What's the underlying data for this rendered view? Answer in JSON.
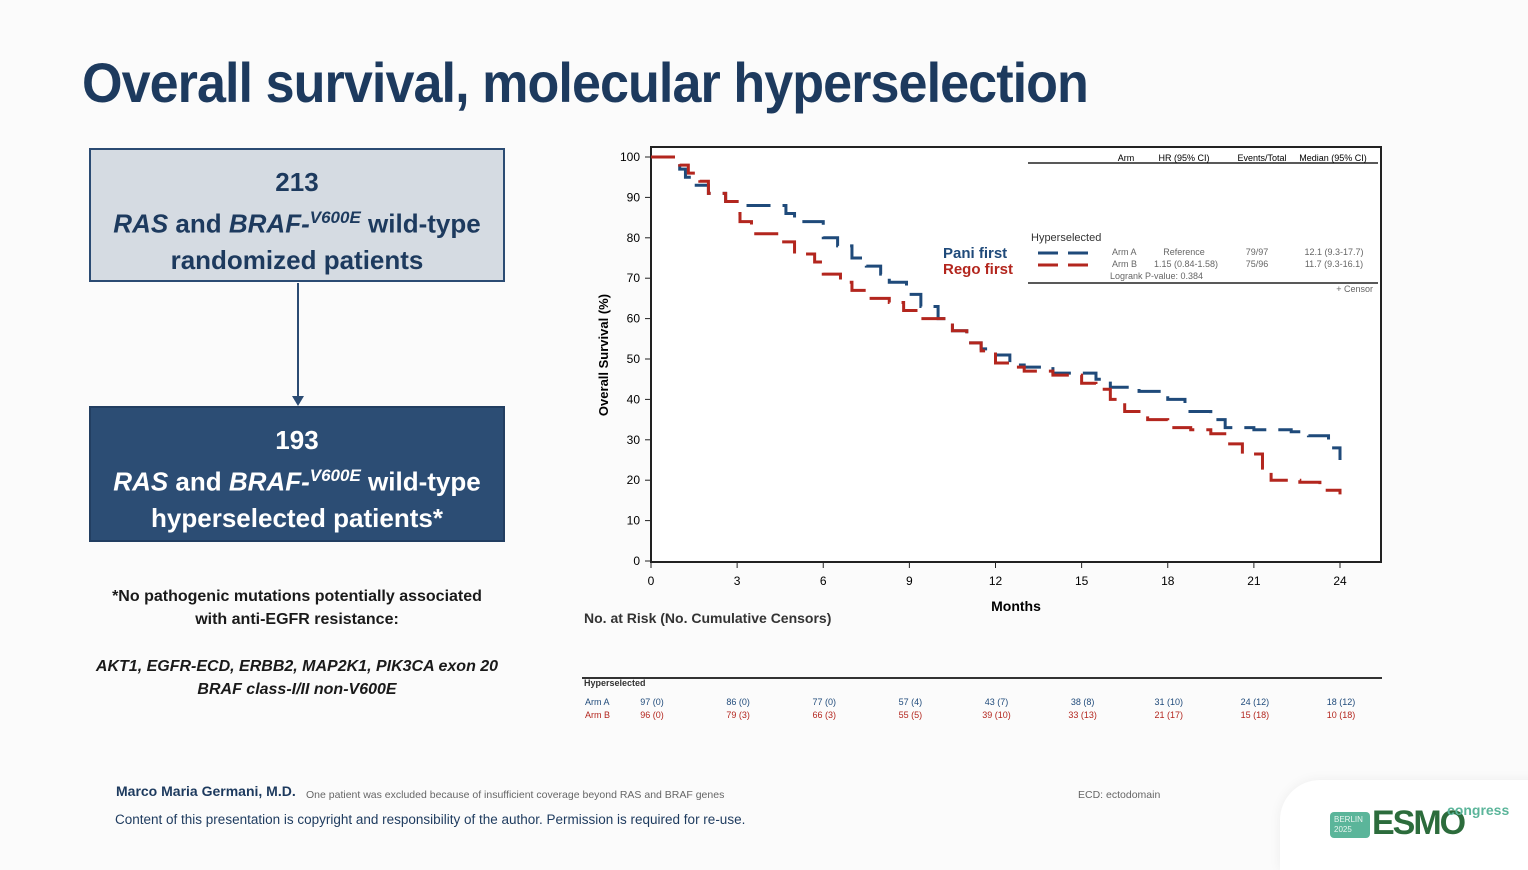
{
  "slide": {
    "title": "Overall survival, molecular hyperselection",
    "box1": {
      "count": "213",
      "line2_a": "RAS",
      "line2_b": " and ",
      "line2_c": "BRAF-",
      "line2_sup": "V600E",
      "line2_d": " wild-type",
      "line3": "randomized patients"
    },
    "box2": {
      "count": "193",
      "line2_a": "RAS",
      "line2_b": " and ",
      "line2_c": "BRAF-",
      "line2_sup": "V600E",
      "line2_d": " wild-type",
      "line3": "hyperselected patients*"
    },
    "footnote1": "*No pathogenic mutations potentially associated",
    "footnote2": "with anti-EGFR resistance:",
    "genes1": "AKT1, EGFR-ECD, ERBB2, MAP2K1, PIK3CA exon 20",
    "genes2": "BRAF class-I/II non-V600E",
    "author": "Marco Maria Germani, M.D.",
    "exclusion_note": "One patient was excluded because of insufficient coverage beyond RAS and BRAF genes",
    "abbrev": "ECD: ectodomain",
    "copyright": "Content of this presentation is copyright and responsibility of the author. Permission is required for re-use.",
    "logo": {
      "city": "BERLIN",
      "year": "2025",
      "brand": "ESMO",
      "word": "congress"
    }
  },
  "chart_data": {
    "type": "line",
    "subtype": "kaplan-meier step",
    "xlabel": "Months",
    "ylabel": "Overall Survival (%)",
    "xlim": [
      0,
      24.5
    ],
    "ylim": [
      0,
      100
    ],
    "xticks": [
      0,
      3,
      6,
      9,
      12,
      15,
      18,
      21,
      24
    ],
    "yticks": [
      0,
      10,
      20,
      30,
      40,
      50,
      60,
      70,
      80,
      90,
      100
    ],
    "grid": false,
    "colors": {
      "arm_a": "#1f4a7a",
      "arm_b": "#b3261e"
    },
    "series": [
      {
        "name": "Pani first",
        "arm": "Arm A",
        "color": "#1f4a7a",
        "points": [
          [
            0,
            100
          ],
          [
            1.0,
            97
          ],
          [
            1.2,
            95
          ],
          [
            1.5,
            93
          ],
          [
            2.0,
            91
          ],
          [
            2.6,
            89
          ],
          [
            3.3,
            88
          ],
          [
            4.7,
            86
          ],
          [
            5.0,
            84
          ],
          [
            6.0,
            80
          ],
          [
            6.5,
            78
          ],
          [
            7.0,
            75
          ],
          [
            7.5,
            73
          ],
          [
            8.0,
            71
          ],
          [
            8.3,
            69
          ],
          [
            8.9,
            66
          ],
          [
            9.4,
            63
          ],
          [
            10.0,
            60
          ],
          [
            10.5,
            57
          ],
          [
            11.0,
            54
          ],
          [
            11.5,
            52.5
          ],
          [
            12.0,
            51
          ],
          [
            12.5,
            48.5
          ],
          [
            13.0,
            48
          ],
          [
            14.0,
            46.5
          ],
          [
            15.5,
            45
          ],
          [
            16.0,
            43
          ],
          [
            17.0,
            42
          ],
          [
            18.0,
            40
          ],
          [
            18.6,
            37
          ],
          [
            19.5,
            35
          ],
          [
            20.0,
            33
          ],
          [
            21.0,
            32.5
          ],
          [
            22.3,
            32
          ],
          [
            22.9,
            31
          ],
          [
            23.6,
            28
          ],
          [
            24.0,
            25
          ]
        ]
      },
      {
        "name": "Rego first",
        "arm": "Arm B",
        "color": "#b3261e",
        "points": [
          [
            0,
            100
          ],
          [
            1.0,
            98
          ],
          [
            1.3,
            96
          ],
          [
            1.7,
            94
          ],
          [
            2.0,
            91
          ],
          [
            2.6,
            89
          ],
          [
            3.0,
            86
          ],
          [
            3.1,
            84
          ],
          [
            3.5,
            81
          ],
          [
            4.5,
            79
          ],
          [
            5.0,
            76
          ],
          [
            5.7,
            74
          ],
          [
            6.0,
            71
          ],
          [
            6.6,
            69
          ],
          [
            7.0,
            67
          ],
          [
            7.5,
            65
          ],
          [
            8.3,
            64
          ],
          [
            8.8,
            62
          ],
          [
            9.3,
            60
          ],
          [
            10.1,
            60
          ],
          [
            10.5,
            57
          ],
          [
            11.0,
            54
          ],
          [
            11.5,
            52
          ],
          [
            12.0,
            49
          ],
          [
            12.5,
            48
          ],
          [
            13.0,
            47
          ],
          [
            14.0,
            46
          ],
          [
            15.0,
            44
          ],
          [
            15.5,
            42.5
          ],
          [
            16.0,
            40
          ],
          [
            16.5,
            37
          ],
          [
            17.3,
            35
          ],
          [
            18.0,
            33
          ],
          [
            18.8,
            32.5
          ],
          [
            19.5,
            31.5
          ],
          [
            20.1,
            29
          ],
          [
            20.6,
            26.5
          ],
          [
            21.3,
            23
          ],
          [
            21.6,
            20
          ],
          [
            22.6,
            19.5
          ],
          [
            23.3,
            17.5
          ],
          [
            24.0,
            16.5
          ]
        ]
      }
    ],
    "legend": {
      "placement": "top-right",
      "headers": [
        "Arm",
        "HR (95% CI)",
        "Events/Total",
        "Median (95% CI)"
      ],
      "group": "Hyperselected",
      "rows": [
        {
          "label": "Pani first",
          "arm": "Arm A",
          "hr": "Reference",
          "events": "79/97",
          "median": "12.1 (9.3-17.7)"
        },
        {
          "label": "Rego first",
          "arm": "Arm B",
          "hr": "1.15 (0.84-1.58)",
          "events": "75/96",
          "median": "11.7 (9.3-16.1)"
        }
      ],
      "pvalue": "Logrank P-value: 0.384",
      "censor": "+  Censor"
    },
    "risk_table": {
      "title": "No. at Risk (No. Cumulative Censors)",
      "group": "Hyperselected",
      "rows": [
        {
          "arm": "Arm A",
          "values": [
            "97 (0)",
            "86 (0)",
            "77 (0)",
            "57 (4)",
            "43 (7)",
            "38 (8)",
            "31 (10)",
            "24 (12)",
            "18 (12)"
          ]
        },
        {
          "arm": "Arm B",
          "values": [
            "96 (0)",
            "79 (3)",
            "66 (3)",
            "55 (5)",
            "39 (10)",
            "33 (13)",
            "21 (17)",
            "15 (18)",
            "10 (18)"
          ]
        }
      ]
    }
  }
}
